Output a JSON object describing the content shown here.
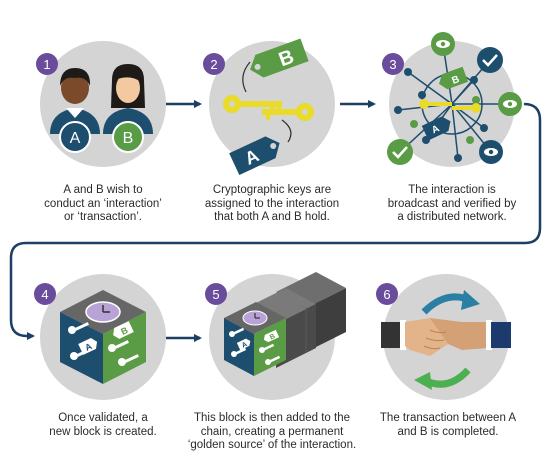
{
  "colors": {
    "circle": "#d4d4d4",
    "badge": "#6a4c9c",
    "badge_text": "#ffffff",
    "arrow": "#1c3f63",
    "navy": "#1d4e6e",
    "green": "#5a9b45",
    "key_yellow": "#e8db2a",
    "skin_dark": "#7a4a2a",
    "skin_light": "#f2c9a0",
    "hair_dark": "#1d1a18",
    "block_dark": "#555555",
    "teal_arrow": "#2a7fa4",
    "green_arrow": "#4caf50"
  },
  "steps": [
    {
      "number": "1",
      "labels": [
        "A",
        "B"
      ],
      "lines": [
        "A and B wish to",
        "conduct an ‘interaction’",
        "or ‘transaction’."
      ]
    },
    {
      "number": "2",
      "labels": [
        "A",
        "B"
      ],
      "lines": [
        "Cryptographic keys are",
        "assigned to the interaction",
        "that both A and B hold."
      ]
    },
    {
      "number": "3",
      "labels": [
        "A",
        "B"
      ],
      "lines": [
        "The interaction is",
        "broadcast and verified by",
        "a distributed network."
      ]
    },
    {
      "number": "4",
      "labels": [
        "A",
        "B"
      ],
      "lines": [
        "Once validated, a",
        "new block is created."
      ]
    },
    {
      "number": "5",
      "labels": [
        "A",
        "B"
      ],
      "lines": [
        "This block is then added to the",
        "chain, creating a permanent",
        "‘golden source’ of the interaction."
      ]
    },
    {
      "number": "6",
      "labels": [],
      "lines": [
        "The transaction between A",
        "and B is completed."
      ]
    }
  ]
}
